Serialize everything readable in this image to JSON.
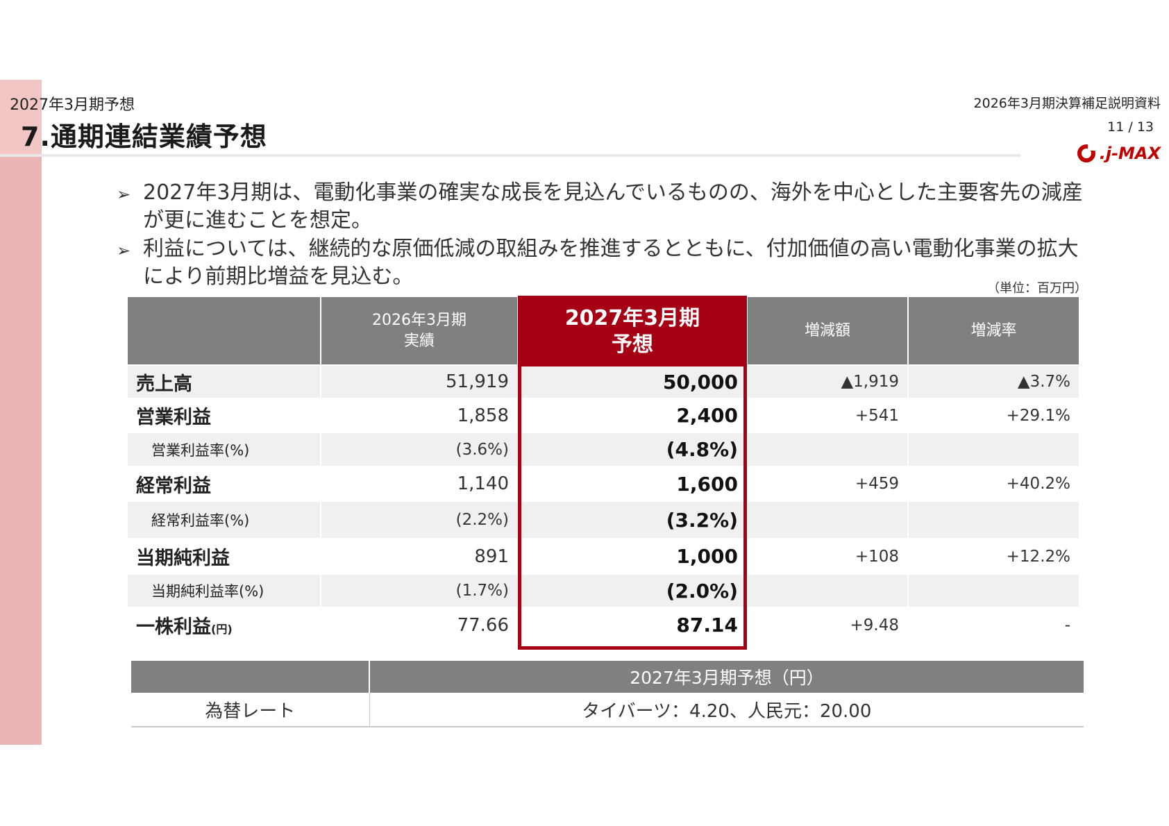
{
  "header": {
    "subtitle": "2027年3月期予想",
    "title": "7.通期連結業績予想",
    "doc_name": "2026年3月期決算補足説明資料",
    "page": "11 / 13",
    "logo_text": ".j-MAX"
  },
  "bullets": [
    {
      "mark": "➢",
      "text": "2027年3月期は、電動化事業の確実な成長を見込んでいるものの、海外を中心とした主要客先の減産が更に進むことを想定。"
    },
    {
      "mark": "➢",
      "text": "利益については、継続的な原価低減の取組みを推進するとともに、付加価値の高い電動化事業の拡大により前期比増益を見込む。"
    }
  ],
  "unit": "（単位：百万円）",
  "table": {
    "headers": {
      "prev_line1": "2026年3月期",
      "prev_line2": "実績",
      "forecast_line1": "2027年3月期",
      "forecast_line2": "予想",
      "diff": "増減額",
      "rate": "増減率"
    },
    "rows": [
      {
        "label": "売上高",
        "label_suffix": "",
        "prev": "51,919",
        "forecast": "50,000",
        "diff": "▲1,919",
        "rate": "▲3.7%"
      },
      {
        "label": "営業利益",
        "label_suffix": "",
        "prev": "1,858",
        "forecast": "2,400",
        "diff": "+541",
        "rate": "+29.1%"
      },
      {
        "label": "営業利益率(%)",
        "label_suffix": "",
        "prev": "(3.6%)",
        "forecast": "(4.8%)",
        "diff": "",
        "rate": ""
      },
      {
        "label": "経常利益",
        "label_suffix": "",
        "prev": "1,140",
        "forecast": "1,600",
        "diff": "+459",
        "rate": "+40.2%"
      },
      {
        "label": "経常利益率(%)",
        "label_suffix": "",
        "prev": "(2.2%)",
        "forecast": "(3.2%)",
        "diff": "",
        "rate": ""
      },
      {
        "label": "当期純利益",
        "label_suffix": "",
        "prev": "891",
        "forecast": "1,000",
        "diff": "+108",
        "rate": "+12.2%"
      },
      {
        "label": "当期純利益率(%)",
        "label_suffix": "",
        "prev": "(1.7%)",
        "forecast": "(2.0%)",
        "diff": "",
        "rate": ""
      },
      {
        "label": "一株利益",
        "label_suffix": "(円)",
        "prev": "77.66",
        "forecast": "87.14",
        "diff": "+9.48",
        "rate": "-"
      }
    ]
  },
  "fx": {
    "header": "2027年3月期予想（円）",
    "label": "為替レート",
    "value": "タイバーツ：4.20、人民元：20.00"
  },
  "colors": {
    "accent": "#a50014",
    "side_band": "#ecb5b5",
    "header_gray": "#808080",
    "row_shade": "#f0f0f0"
  }
}
